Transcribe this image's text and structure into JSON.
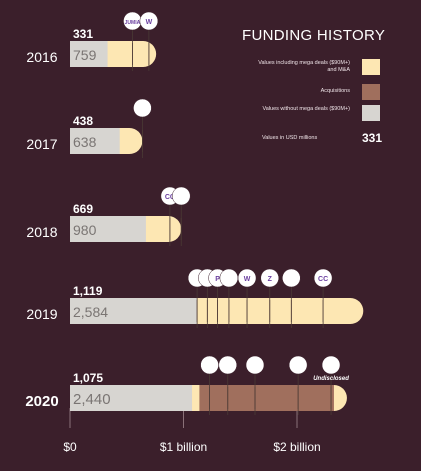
{
  "legend": {
    "title": "FUNDING HISTORY",
    "items": [
      {
        "label": "Values including mega deals ($90M+) and M&A",
        "color": "#fde7b3"
      },
      {
        "label": "Acquisitions",
        "color": "#a06f5d"
      },
      {
        "label": "Values without mega deals ($90M+)",
        "color": "#d7d5d1"
      }
    ],
    "usd_label": "Values in USD millions",
    "usd_value": "331"
  },
  "colors": {
    "background": "#3b1f2b",
    "mega": "#fde7b3",
    "acquisitions": "#a06f5d",
    "without_mega": "#d7d5d1"
  },
  "chart_data": {
    "type": "bar",
    "orientation": "horizontal",
    "stacked": true,
    "title": "FUNDING HISTORY",
    "units": "USD millions",
    "xlim": [
      0,
      2550
    ],
    "xticks": [
      {
        "value": 0,
        "label": "$0"
      },
      {
        "value": 1000,
        "label": "$1 billion"
      },
      {
        "value": 2000,
        "label": "$2 billion"
      }
    ],
    "categories": [
      "2016",
      "2017",
      "2018",
      "2019",
      "2020"
    ],
    "series": [
      {
        "name": "Values without mega deals ($90M+)",
        "values": [
          331,
          438,
          669,
          1119,
          1075
        ]
      },
      {
        "name": "Values including mega deals ($90M+) and M&A",
        "values": [
          759,
          638,
          980,
          2584,
          2440
        ]
      },
      {
        "name": "Acquisitions"
      }
    ],
    "rows": [
      {
        "year": "2016",
        "without_mega": 331,
        "with_mega": 759,
        "total": 759,
        "acq_start": null,
        "deals": [
          {
            "icon": "jumia-logo",
            "text": "JUMIA",
            "value": 550
          },
          {
            "icon": "w-logo",
            "text": "W",
            "value": 695
          }
        ]
      },
      {
        "year": "2017",
        "without_mega": 438,
        "with_mega": 638,
        "total": 638,
        "acq_start": null,
        "deals": [
          {
            "icon": "planet-logo",
            "text": "",
            "value": 638
          }
        ]
      },
      {
        "year": "2018",
        "without_mega": 669,
        "with_mega": 980,
        "total": 980,
        "acq_start": null,
        "deals": [
          {
            "icon": "cc-logo",
            "text": "CC",
            "value": 880
          },
          {
            "icon": "calculator-logo",
            "text": "",
            "value": 980
          }
        ]
      },
      {
        "year": "2019",
        "without_mega": 1119,
        "with_mega": 2584,
        "total": 2584,
        "acq_start": null,
        "deals": [
          {
            "icon": "ring-logo",
            "text": "",
            "value": 1120
          },
          {
            "icon": "swirl-logo",
            "text": "",
            "value": 1210
          },
          {
            "icon": "p-logo",
            "text": "P",
            "value": 1300
          },
          {
            "icon": "dots-logo",
            "text": "",
            "value": 1400
          },
          {
            "icon": "w-logo",
            "text": "W",
            "value": 1560
          },
          {
            "icon": "z-logo",
            "text": "Z",
            "value": 1760
          },
          {
            "icon": "arrow-logo",
            "text": "",
            "value": 1950
          },
          {
            "icon": "cc-logo",
            "text": "CC",
            "value": 2230
          }
        ]
      },
      {
        "year": "2020",
        "without_mega": 1075,
        "with_mega": 2440,
        "total": 2440,
        "acq_start": 1140,
        "deals": [
          {
            "icon": "calculator-logo",
            "text": "",
            "value": 1230
          },
          {
            "icon": "lines-logo",
            "text": "",
            "value": 1390
          },
          {
            "icon": "bird-logo",
            "text": "",
            "value": 1630
          },
          {
            "icon": "chess-logo",
            "text": "",
            "value": 2010
          },
          {
            "icon": "chat-logo",
            "text": "",
            "value": 2300,
            "note": "Undisclosed"
          }
        ]
      }
    ]
  }
}
